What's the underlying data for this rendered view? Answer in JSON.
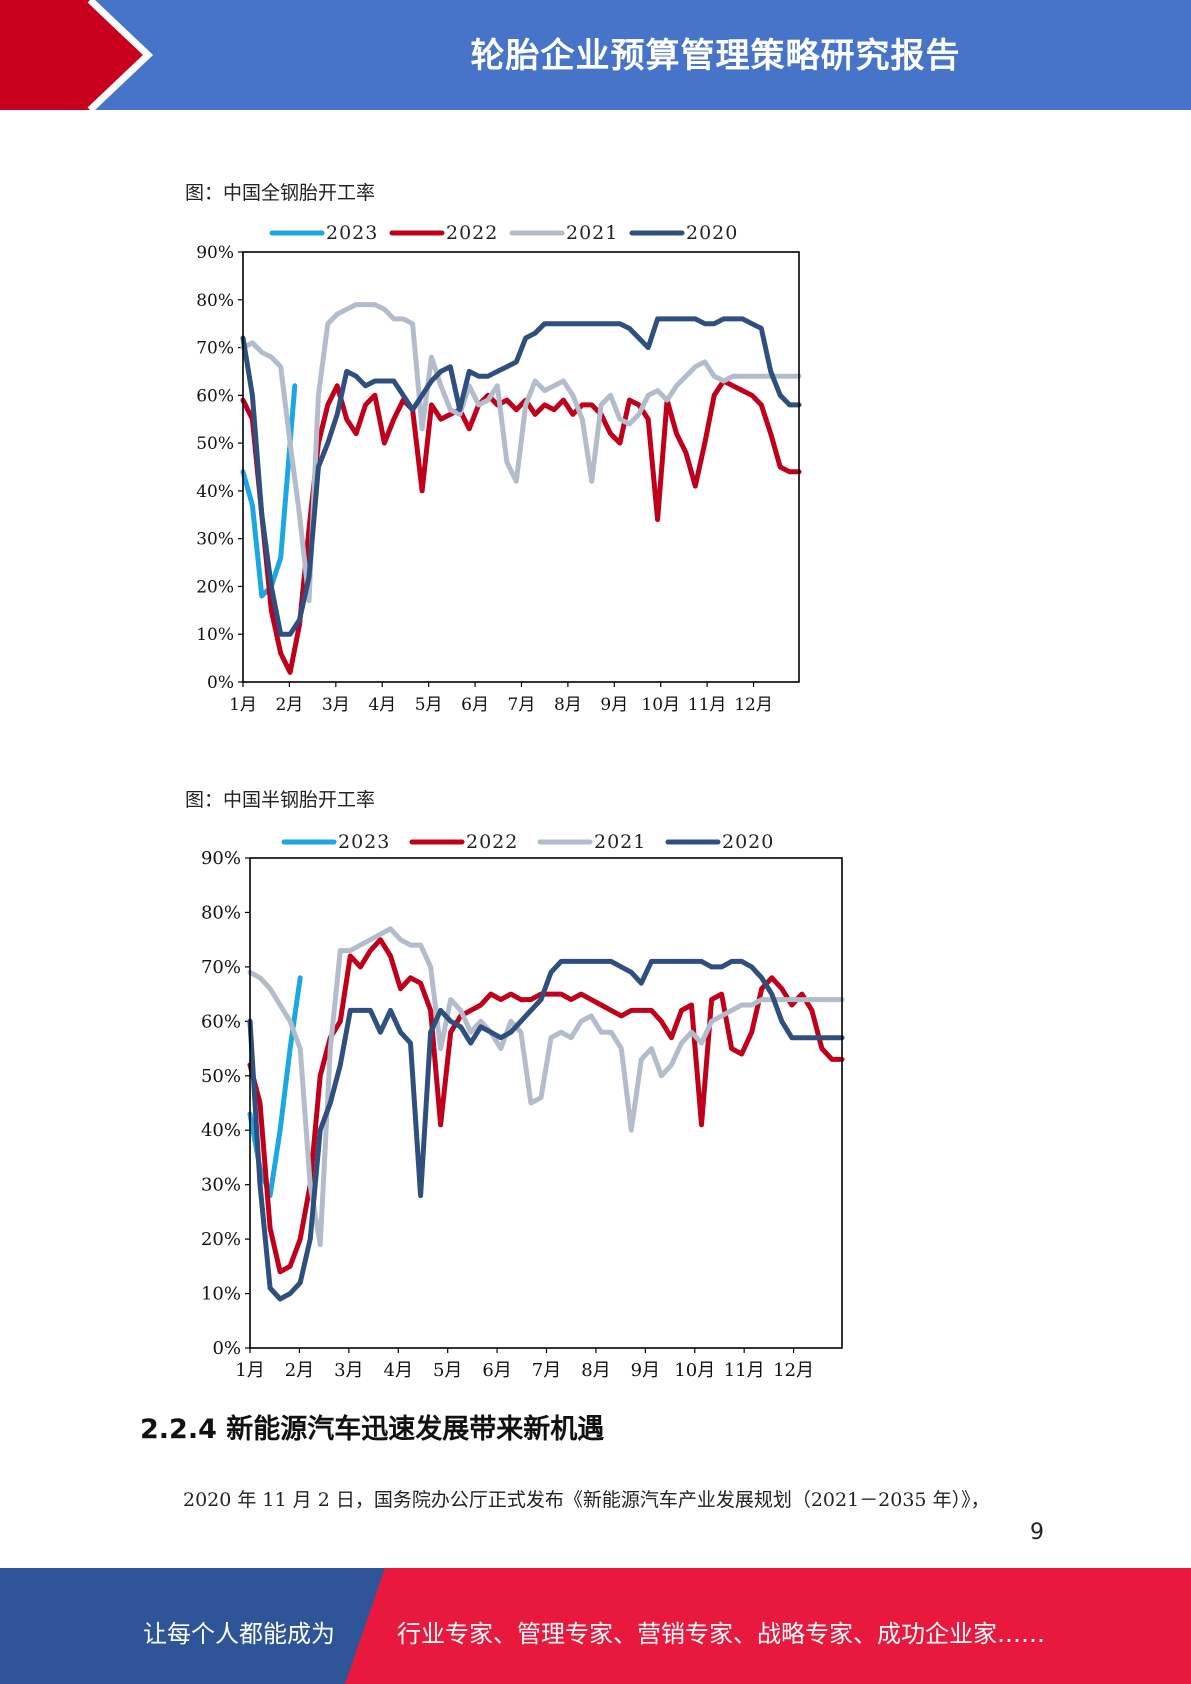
{
  "header": {
    "title": "轮胎企业预算管理策略研究报告"
  },
  "figures": [
    {
      "caption": "图：中国全钢胎开工率"
    },
    {
      "caption": "图：中国半钢胎开工率"
    }
  ],
  "section": {
    "heading": "2.2.4 新能源汽车迅速发展带来新机遇",
    "paragraph": "2020 年 11 月 2 日，国务院办公厅正式发布《新能源汽车产业发展规划（2021－2035 年）》，"
  },
  "page_number": "9",
  "footer": {
    "left_text": "让每个人都能成为",
    "right_text": "行业专家、管理专家、营销专家、战略专家、成功企业家……"
  },
  "colors": {
    "header_blue": "#4674c8",
    "header_red": "#c8001e",
    "footer_blue": "#2e5597",
    "footer_red": "#e8193c"
  },
  "chart_data": [
    {
      "type": "line",
      "title": "",
      "xlabel": "",
      "ylabel": "",
      "x_ticks": [
        "1月",
        "2月",
        "3月",
        "4月",
        "5月",
        "6月",
        "7月",
        "8月",
        "9月",
        "10月",
        "11月",
        "12月"
      ],
      "y_ticks": [
        "0%",
        "10%",
        "20%",
        "30%",
        "40%",
        "50%",
        "60%",
        "70%",
        "80%",
        "90%"
      ],
      "xlim": [
        1,
        12.8
      ],
      "ylim": [
        0,
        90
      ],
      "legend_position": "top",
      "series": [
        {
          "name": "2023",
          "color": "#1aa7e3",
          "x": [
            1,
            1.2,
            1.4,
            1.6,
            1.8,
            2.0,
            2.1
          ],
          "y": [
            44,
            37,
            18,
            20,
            26,
            50,
            62
          ]
        },
        {
          "name": "2022",
          "color": "#c0001a",
          "x": [
            1,
            1.2,
            1.4,
            1.6,
            1.8,
            2.0,
            2.2,
            2.4,
            2.6,
            2.8,
            3.0,
            3.2,
            3.4,
            3.6,
            3.8,
            4.0,
            4.2,
            4.4,
            4.6,
            4.8,
            5.0,
            5.2,
            5.4,
            5.6,
            5.8,
            6.0,
            6.2,
            6.4,
            6.6,
            6.8,
            7.0,
            7.2,
            7.4,
            7.6,
            7.8,
            8.0,
            8.2,
            8.4,
            8.6,
            8.8,
            9.0,
            9.2,
            9.4,
            9.6,
            9.8,
            10.0,
            10.2,
            10.4,
            10.6,
            10.8,
            11.0,
            11.2,
            11.4,
            11.6,
            11.8,
            12.0,
            12.2,
            12.4,
            12.6,
            12.8
          ],
          "y": [
            59,
            55,
            35,
            15,
            6,
            2,
            12,
            32,
            50,
            58,
            62,
            55,
            52,
            58,
            60,
            50,
            55,
            59,
            57,
            40,
            58,
            55,
            56,
            57,
            53,
            58,
            60,
            58,
            59,
            57,
            59,
            56,
            58,
            57,
            59,
            56,
            58,
            58,
            56,
            52,
            50,
            59,
            58,
            55,
            34,
            59,
            52,
            48,
            41,
            50,
            60,
            63,
            62,
            61,
            60,
            58,
            52,
            45,
            44,
            44
          ]
        },
        {
          "name": "2021",
          "color": "#b2bccb",
          "x": [
            1,
            1.2,
            1.4,
            1.6,
            1.8,
            2.0,
            2.2,
            2.4,
            2.6,
            2.8,
            3.0,
            3.2,
            3.4,
            3.6,
            3.8,
            4.0,
            4.2,
            4.4,
            4.6,
            4.8,
            5.0,
            5.2,
            5.4,
            5.6,
            5.8,
            6.0,
            6.2,
            6.4,
            6.6,
            6.8,
            7.0,
            7.2,
            7.4,
            7.6,
            7.8,
            8.0,
            8.2,
            8.4,
            8.6,
            8.8,
            9.0,
            9.2,
            9.4,
            9.6,
            9.8,
            10.0,
            10.2,
            10.4,
            10.6,
            10.8,
            11.0,
            11.2,
            11.4,
            11.6,
            11.8,
            12.0,
            12.2,
            12.4,
            12.6,
            12.8
          ],
          "y": [
            70,
            71,
            69,
            68,
            66,
            50,
            35,
            17,
            60,
            75,
            77,
            78,
            79,
            79,
            79,
            78,
            76,
            76,
            75,
            53,
            68,
            62,
            57,
            56,
            62,
            58,
            59,
            62,
            46,
            42,
            58,
            63,
            61,
            62,
            63,
            60,
            55,
            42,
            58,
            60,
            55,
            54,
            56,
            60,
            61,
            59,
            62,
            64,
            66,
            67,
            64,
            63,
            64,
            64,
            64,
            64,
            64,
            64,
            64,
            64
          ]
        },
        {
          "name": "2020",
          "color": "#2f4f7f",
          "x": [
            1,
            1.2,
            1.4,
            1.6,
            1.8,
            2.0,
            2.2,
            2.4,
            2.6,
            2.8,
            3.0,
            3.2,
            3.4,
            3.6,
            3.8,
            4.0,
            4.2,
            4.4,
            4.6,
            4.8,
            5.0,
            5.2,
            5.4,
            5.6,
            5.8,
            6.0,
            6.2,
            6.4,
            6.6,
            6.8,
            7.0,
            7.2,
            7.4,
            7.6,
            7.8,
            8.0,
            8.2,
            8.4,
            8.6,
            8.8,
            9.0,
            9.2,
            9.4,
            9.6,
            9.8,
            10.0,
            10.2,
            10.4,
            10.6,
            10.8,
            11.0,
            11.2,
            11.4,
            11.6,
            11.8,
            12.0,
            12.2,
            12.4,
            12.6,
            12.8
          ],
          "y": [
            72,
            60,
            35,
            20,
            10,
            10,
            13,
            22,
            45,
            50,
            56,
            65,
            64,
            62,
            63,
            63,
            63,
            60,
            57,
            60,
            63,
            65,
            66,
            57,
            65,
            64,
            64,
            65,
            66,
            67,
            72,
            73,
            75,
            75,
            75,
            75,
            75,
            75,
            75,
            75,
            75,
            74,
            72,
            70,
            76,
            76,
            76,
            76,
            76,
            75,
            75,
            76,
            76,
            76,
            75,
            74,
            65,
            60,
            58,
            58
          ]
        }
      ]
    },
    {
      "type": "line",
      "title": "",
      "xlabel": "",
      "ylabel": "",
      "x_ticks": [
        "1月",
        "2月",
        "3月",
        "4月",
        "5月",
        "6月",
        "7月",
        "8月",
        "9月",
        "10月",
        "11月",
        "12月"
      ],
      "y_ticks": [
        "0%",
        "10%",
        "20%",
        "30%",
        "40%",
        "50%",
        "60%",
        "70%",
        "80%",
        "90%"
      ],
      "xlim": [
        1,
        12.8
      ],
      "ylim": [
        0,
        90
      ],
      "legend_position": "top",
      "series": [
        {
          "name": "2023",
          "color": "#1aa7e3",
          "x": [
            1,
            1.2,
            1.4,
            1.6,
            1.8,
            2.0
          ],
          "y": [
            43,
            33,
            28,
            40,
            55,
            68
          ]
        },
        {
          "name": "2022",
          "color": "#c0001a",
          "x": [
            1,
            1.2,
            1.4,
            1.6,
            1.8,
            2.0,
            2.2,
            2.4,
            2.6,
            2.8,
            3.0,
            3.2,
            3.4,
            3.6,
            3.8,
            4.0,
            4.2,
            4.4,
            4.6,
            4.8,
            5.0,
            5.2,
            5.4,
            5.6,
            5.8,
            6.0,
            6.2,
            6.4,
            6.6,
            6.8,
            7.0,
            7.2,
            7.4,
            7.6,
            7.8,
            8.0,
            8.2,
            8.4,
            8.6,
            8.8,
            9.0,
            9.2,
            9.4,
            9.6,
            9.8,
            10.0,
            10.2,
            10.4,
            10.6,
            10.8,
            11.0,
            11.2,
            11.4,
            11.6,
            11.8,
            12.0,
            12.2,
            12.4,
            12.6,
            12.8
          ],
          "y": [
            52,
            45,
            22,
            14,
            15,
            20,
            30,
            50,
            57,
            60,
            72,
            70,
            73,
            75,
            72,
            66,
            68,
            67,
            62,
            41,
            58,
            61,
            62,
            63,
            65,
            64,
            65,
            64,
            64,
            65,
            65,
            65,
            64,
            65,
            64,
            63,
            62,
            61,
            62,
            62,
            62,
            60,
            57,
            62,
            63,
            41,
            64,
            65,
            55,
            54,
            58,
            66,
            68,
            66,
            63,
            65,
            62,
            55,
            53,
            53
          ]
        },
        {
          "name": "2021",
          "color": "#b2bccb",
          "x": [
            1,
            1.2,
            1.4,
            1.6,
            1.8,
            2.0,
            2.2,
            2.4,
            2.6,
            2.8,
            3.0,
            3.2,
            3.4,
            3.6,
            3.8,
            4.0,
            4.2,
            4.4,
            4.6,
            4.8,
            5.0,
            5.2,
            5.4,
            5.6,
            5.8,
            6.0,
            6.2,
            6.4,
            6.6,
            6.8,
            7.0,
            7.2,
            7.4,
            7.6,
            7.8,
            8.0,
            8.2,
            8.4,
            8.6,
            8.8,
            9.0,
            9.2,
            9.4,
            9.6,
            9.8,
            10.0,
            10.2,
            10.4,
            10.6,
            10.8,
            11.0,
            11.2,
            11.4,
            11.6,
            11.8,
            12.0,
            12.2,
            12.4,
            12.6,
            12.8
          ],
          "y": [
            69,
            68,
            66,
            63,
            60,
            55,
            30,
            19,
            55,
            73,
            73,
            74,
            75,
            76,
            77,
            75,
            74,
            74,
            70,
            55,
            64,
            62,
            58,
            60,
            58,
            55,
            60,
            58,
            45,
            46,
            57,
            58,
            57,
            60,
            61,
            58,
            58,
            55,
            40,
            53,
            55,
            50,
            52,
            56,
            58,
            56,
            60,
            61,
            62,
            63,
            63,
            64,
            64,
            64,
            64,
            64,
            64,
            64,
            64,
            64
          ]
        },
        {
          "name": "2020",
          "color": "#2f4f7f",
          "x": [
            1,
            1.2,
            1.4,
            1.6,
            1.8,
            2.0,
            2.2,
            2.4,
            2.6,
            2.8,
            3.0,
            3.2,
            3.4,
            3.6,
            3.8,
            4.0,
            4.2,
            4.4,
            4.6,
            4.8,
            5.0,
            5.2,
            5.4,
            5.6,
            5.8,
            6.0,
            6.2,
            6.4,
            6.6,
            6.8,
            7.0,
            7.2,
            7.4,
            7.6,
            7.8,
            8.0,
            8.2,
            8.4,
            8.6,
            8.8,
            9.0,
            9.2,
            9.4,
            9.6,
            9.8,
            10.0,
            10.2,
            10.4,
            10.6,
            10.8,
            11.0,
            11.2,
            11.4,
            11.6,
            11.8,
            12.0,
            12.2,
            12.4,
            12.6,
            12.8
          ],
          "y": [
            60,
            30,
            11,
            9,
            10,
            12,
            20,
            40,
            45,
            52,
            62,
            62,
            62,
            58,
            62,
            58,
            56,
            28,
            58,
            62,
            60,
            59,
            56,
            59,
            58,
            57,
            58,
            60,
            62,
            64,
            69,
            71,
            71,
            71,
            71,
            71,
            71,
            70,
            69,
            67,
            71,
            71,
            71,
            71,
            71,
            71,
            70,
            70,
            71,
            71,
            70,
            68,
            65,
            60,
            57,
            57,
            57,
            57,
            57,
            57
          ]
        }
      ]
    }
  ]
}
